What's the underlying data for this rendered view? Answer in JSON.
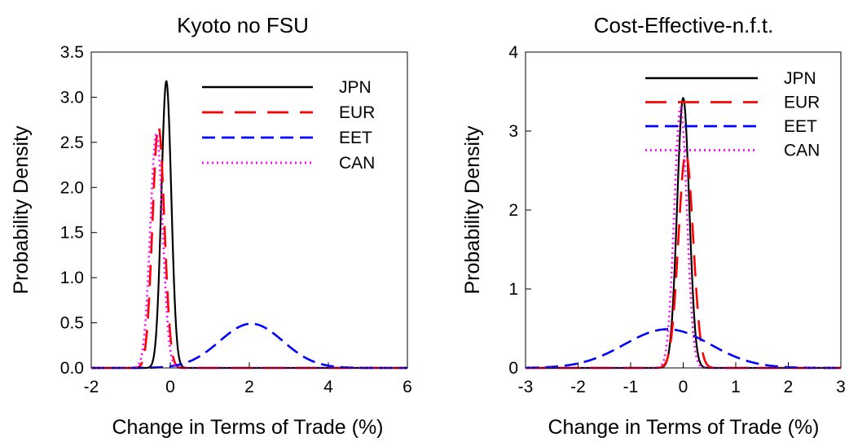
{
  "chart_data": [
    {
      "type": "line",
      "title": "Kyoto no FSU",
      "xlabel": "Change in Terms of Trade (%)",
      "ylabel": "Probability Density",
      "xlim": [
        -2,
        6
      ],
      "ylim": [
        0,
        3.5
      ],
      "xticks": [
        -2,
        0,
        2,
        4,
        6
      ],
      "xtick_labels": [
        "-2",
        "0",
        "2",
        "4",
        "6"
      ],
      "yticks": [
        0,
        0.5,
        1,
        1.5,
        2,
        2.5,
        3,
        3.5
      ],
      "ytick_labels": [
        "0.0",
        "0.5",
        "1.0",
        "1.5",
        "2.0",
        "2.5",
        "3.0",
        "3.5"
      ],
      "legend_position": "top-right",
      "grid": false,
      "series": [
        {
          "name": "JPN",
          "color": "#000000",
          "dash": "solid",
          "distribution": {
            "family": "normal",
            "mean": -0.1,
            "sd": 0.125,
            "peak": 3.18
          }
        },
        {
          "name": "EUR",
          "color": "#ff0000",
          "dash": "long-dash",
          "distribution": {
            "family": "normal",
            "mean": -0.3,
            "sd": 0.15,
            "peak": 2.68
          }
        },
        {
          "name": "EET",
          "color": "#0000ff",
          "dash": "dash",
          "distribution": {
            "family": "normal",
            "mean": 2.05,
            "sd": 0.8,
            "peak": 0.49
          }
        },
        {
          "name": "CAN",
          "color": "#ff00ff",
          "dash": "dotted",
          "distribution": {
            "family": "normal",
            "mean": -0.35,
            "sd": 0.155,
            "peak": 2.6
          }
        }
      ]
    },
    {
      "type": "line",
      "title": "Cost-Effective-n.f.t.",
      "xlabel": "Change in Terms of Trade (%)",
      "ylabel": "Probability Density",
      "xlim": [
        -3,
        3
      ],
      "ylim": [
        0,
        4
      ],
      "xticks": [
        -3,
        -2,
        -1,
        0,
        1,
        2,
        3
      ],
      "xtick_labels": [
        "-3",
        "-2",
        "-1",
        "0",
        "1",
        "2",
        "3"
      ],
      "yticks": [
        0,
        1,
        2,
        3,
        4
      ],
      "ytick_labels": [
        "0",
        "1",
        "2",
        "3",
        "4"
      ],
      "legend_position": "top-right",
      "grid": false,
      "series": [
        {
          "name": "JPN",
          "color": "#000000",
          "dash": "solid",
          "distribution": {
            "family": "normal",
            "mean": 0.0,
            "sd": 0.115,
            "peak": 3.42
          }
        },
        {
          "name": "EUR",
          "color": "#ff0000",
          "dash": "long-dash",
          "distribution": {
            "family": "normal",
            "mean": 0.05,
            "sd": 0.14,
            "peak": 2.72
          }
        },
        {
          "name": "EET",
          "color": "#0000ff",
          "dash": "dash",
          "distribution": {
            "family": "normal",
            "mean": -0.3,
            "sd": 0.82,
            "peak": 0.49
          }
        },
        {
          "name": "CAN",
          "color": "#ff00ff",
          "dash": "dotted",
          "distribution": {
            "family": "normal",
            "mean": -0.05,
            "sd": 0.12,
            "peak": 3.3
          }
        }
      ]
    }
  ]
}
